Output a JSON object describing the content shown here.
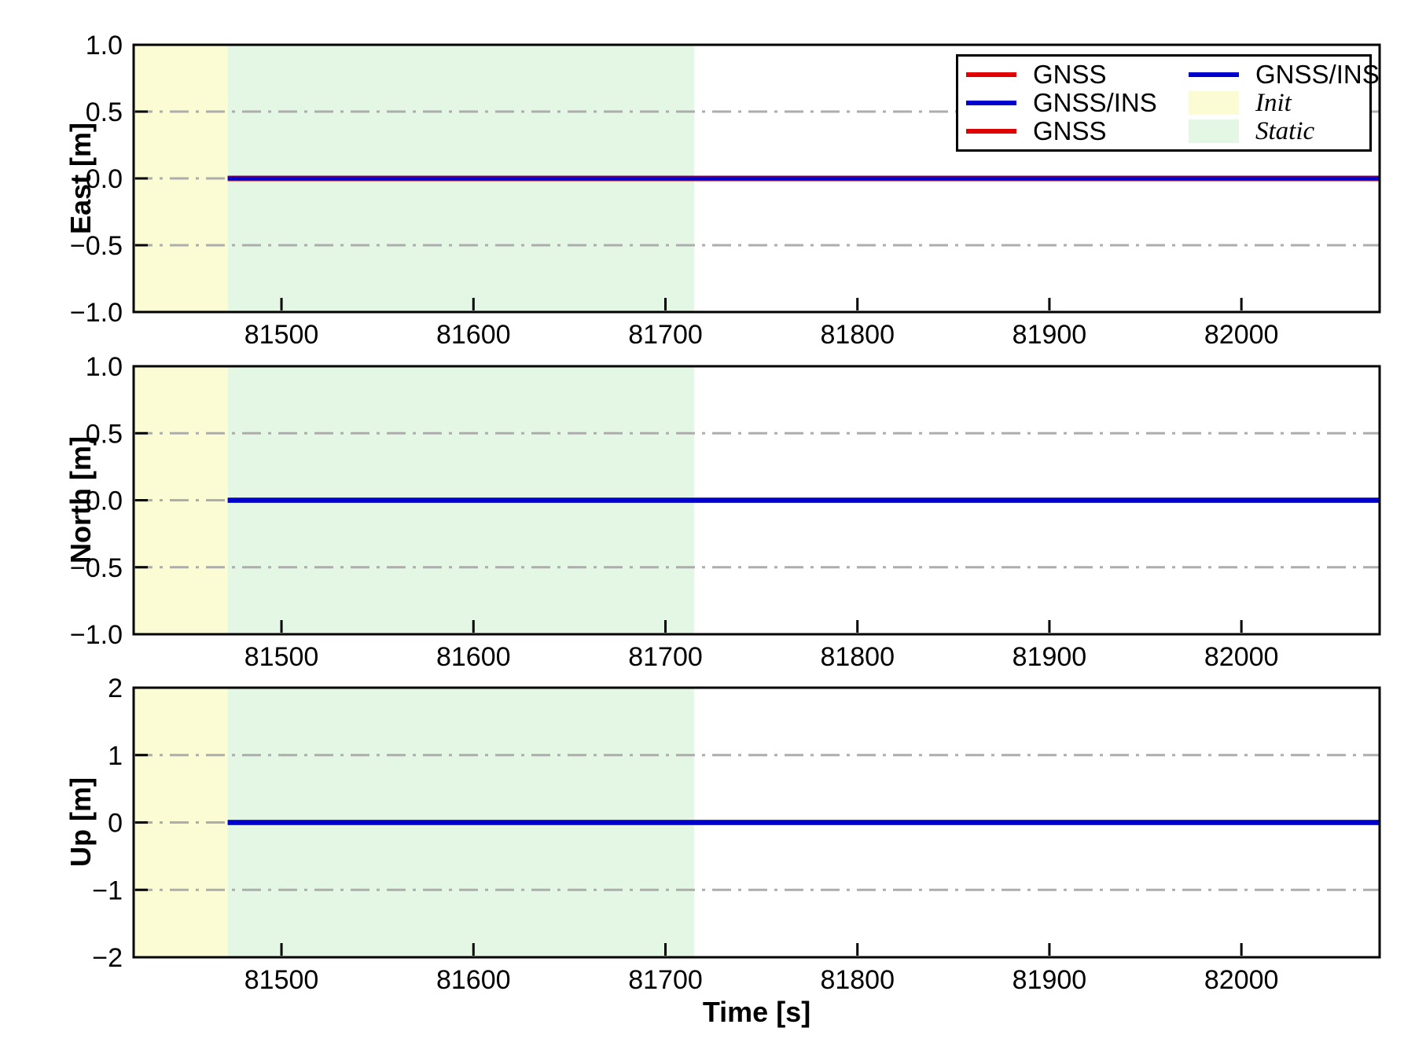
{
  "figure": {
    "background": "#ffffff",
    "axis_color": "#000000"
  },
  "chart_data": {
    "type": "line",
    "title": "",
    "xlabel": "Time [s]",
    "xlim": [
      81423,
      82072
    ],
    "x_tick_values": [
      81500,
      81600,
      81700,
      81800,
      81900,
      82000
    ],
    "x_tick_labels": [
      "81500",
      "81600",
      "81700",
      "81800",
      "81900",
      "82000"
    ],
    "grid": "horizontal dash-dot",
    "grid_color": "#adadad",
    "regions": [
      {
        "name": "Init",
        "start": 81423,
        "end": 81472,
        "color": "#fbfbd4"
      },
      {
        "name": "Static",
        "start": 81472,
        "end": 81715,
        "color": "#e4f7e4"
      }
    ],
    "subplots": [
      {
        "ylabel": "East [m]",
        "ylim": [
          -1,
          1
        ],
        "ytick_values": [
          1,
          0.5,
          0,
          -0.5,
          -1
        ],
        "ytick_labels": [
          "1.0",
          "0.5",
          "0.0",
          "−0.5",
          "−1.0"
        ],
        "grid_y": [
          0.5,
          0,
          -0.5
        ],
        "series": [
          {
            "name": "GNSS",
            "color": "#e00000",
            "lw": 7,
            "x": [
              81472,
              82072
            ],
            "y": [
              0,
              0
            ]
          },
          {
            "name": "GNSS/INS",
            "color": "#0000cd",
            "lw": 5,
            "x": [
              81472,
              82072
            ],
            "y": [
              0,
              0
            ]
          }
        ]
      },
      {
        "ylabel": "North [m]",
        "ylim": [
          -1,
          1
        ],
        "ytick_values": [
          1,
          0.5,
          0,
          -0.5,
          -1
        ],
        "ytick_labels": [
          "1.0",
          "0.5",
          "0.0",
          "−0.5",
          "−1.0"
        ],
        "grid_y": [
          0.5,
          0,
          -0.5
        ],
        "series": [
          {
            "name": "GNSS",
            "color": "#e00000",
            "lw": 7,
            "x": [
              81472,
              82072
            ],
            "y": [
              0,
              0
            ]
          },
          {
            "name": "GNSS/INS",
            "color": "#0000cd",
            "lw": 5,
            "x": [
              81472,
              82072
            ],
            "y": [
              0,
              0
            ]
          }
        ]
      },
      {
        "ylabel": "Up [m]",
        "ylim": [
          -2,
          2
        ],
        "ytick_values": [
          2,
          1,
          0,
          -1,
          -2
        ],
        "ytick_labels": [
          "2",
          "1",
          "0",
          "−1",
          "−2"
        ],
        "grid_y": [
          1,
          0,
          -1
        ],
        "series": [
          {
            "name": "GNSS",
            "color": "#e00000",
            "lw": 7,
            "x": [
              81472,
              82072
            ],
            "y": [
              0,
              0
            ]
          },
          {
            "name": "GNSS/INS",
            "color": "#0000cd",
            "lw": 5,
            "x": [
              81472,
              82072
            ],
            "y": [
              0,
              0
            ]
          }
        ]
      }
    ],
    "legend": {
      "position": "upper right",
      "columns": [
        [
          {
            "label": "GNSS",
            "swatch": "line",
            "color": "#e00000",
            "italic": false
          },
          {
            "label": "GNSS/INS",
            "swatch": "line",
            "color": "#0000cd",
            "italic": false
          },
          {
            "label": "GNSS",
            "swatch": "line",
            "color": "#e00000",
            "italic": false
          }
        ],
        [
          {
            "label": "GNSS/INS",
            "swatch": "line",
            "color": "#0000cd",
            "italic": false
          },
          {
            "label": "Init",
            "swatch": "patch",
            "color": "#fbfbd4",
            "italic": true
          },
          {
            "label": "Static",
            "swatch": "patch",
            "color": "#e4f7e4",
            "italic": true
          }
        ]
      ]
    }
  }
}
